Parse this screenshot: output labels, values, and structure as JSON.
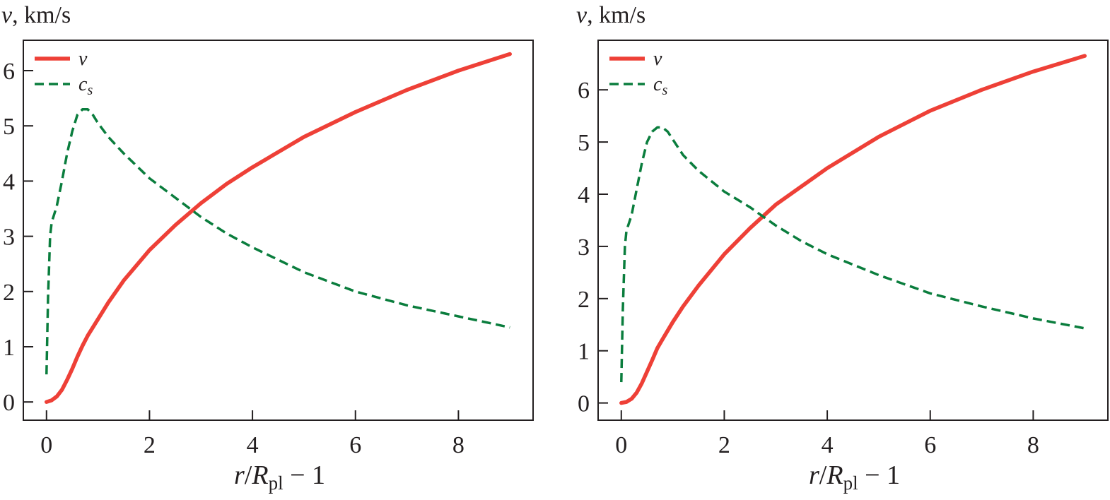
{
  "chart_data": [
    {
      "type": "line",
      "ylabel": "v, km/s",
      "xlabel": "r/R_pl − 1",
      "xlim": [
        -0.45,
        9.45
      ],
      "ylim": [
        -0.33,
        6.55
      ],
      "xticks": [
        0,
        2,
        4,
        6,
        8
      ],
      "yticks": [
        0,
        1,
        2,
        3,
        4,
        5,
        6
      ],
      "legend_position": "top-left",
      "series": [
        {
          "name": "v",
          "style": "solid",
          "color": "#ee4037",
          "x": [
            0,
            0.1,
            0.2,
            0.3,
            0.4,
            0.5,
            0.6,
            0.7,
            0.8,
            1.0,
            1.2,
            1.5,
            2.0,
            2.5,
            3.0,
            3.5,
            4.0,
            5.0,
            6.0,
            7.0,
            8.0,
            9.0
          ],
          "y": [
            0,
            0.03,
            0.1,
            0.22,
            0.4,
            0.6,
            0.82,
            1.02,
            1.2,
            1.5,
            1.8,
            2.2,
            2.75,
            3.2,
            3.6,
            3.95,
            4.25,
            4.8,
            5.25,
            5.65,
            6.0,
            6.3
          ]
        },
        {
          "name": "c_s",
          "style": "dashed",
          "color": "#0a7d3d",
          "x": [
            0,
            0.03,
            0.07,
            0.1,
            0.2,
            0.3,
            0.4,
            0.5,
            0.6,
            0.7,
            0.8,
            0.9,
            1.0,
            1.2,
            1.5,
            2.0,
            2.5,
            3.0,
            3.5,
            4.0,
            5.0,
            6.0,
            7.0,
            8.0,
            9.0
          ],
          "y": [
            0.5,
            1.9,
            3.0,
            3.25,
            3.55,
            4.0,
            4.5,
            4.9,
            5.2,
            5.3,
            5.3,
            5.2,
            5.05,
            4.8,
            4.5,
            4.05,
            3.7,
            3.35,
            3.05,
            2.8,
            2.35,
            2.0,
            1.75,
            1.55,
            1.35
          ]
        }
      ]
    },
    {
      "type": "line",
      "ylabel": "v, km/s",
      "xlabel": "r/R_pl − 1",
      "xlim": [
        -0.45,
        9.45
      ],
      "ylim": [
        -0.33,
        6.95
      ],
      "xticks": [
        0,
        2,
        4,
        6,
        8
      ],
      "yticks": [
        0,
        1,
        2,
        3,
        4,
        5,
        6
      ],
      "legend_position": "top-left",
      "series": [
        {
          "name": "v",
          "style": "solid",
          "color": "#ee4037",
          "x": [
            0,
            0.1,
            0.2,
            0.3,
            0.4,
            0.5,
            0.6,
            0.7,
            0.8,
            1.0,
            1.2,
            1.5,
            2.0,
            2.5,
            3.0,
            3.5,
            4.0,
            5.0,
            6.0,
            7.0,
            8.0,
            9.0
          ],
          "y": [
            0,
            0.02,
            0.08,
            0.2,
            0.38,
            0.6,
            0.82,
            1.05,
            1.22,
            1.55,
            1.85,
            2.25,
            2.85,
            3.35,
            3.8,
            4.15,
            4.5,
            5.1,
            5.6,
            6.0,
            6.35,
            6.65
          ]
        },
        {
          "name": "c_s",
          "style": "dashed",
          "color": "#0a7d3d",
          "x": [
            0,
            0.03,
            0.07,
            0.1,
            0.2,
            0.3,
            0.4,
            0.5,
            0.6,
            0.7,
            0.8,
            0.9,
            1.0,
            1.2,
            1.5,
            2.0,
            2.5,
            3.0,
            3.5,
            4.0,
            5.0,
            6.0,
            7.0,
            8.0,
            9.0
          ],
          "y": [
            0.4,
            1.8,
            3.0,
            3.3,
            3.6,
            4.1,
            4.6,
            5.0,
            5.2,
            5.28,
            5.28,
            5.2,
            5.05,
            4.75,
            4.45,
            4.05,
            3.75,
            3.4,
            3.1,
            2.85,
            2.45,
            2.1,
            1.85,
            1.62,
            1.43
          ]
        }
      ]
    }
  ]
}
